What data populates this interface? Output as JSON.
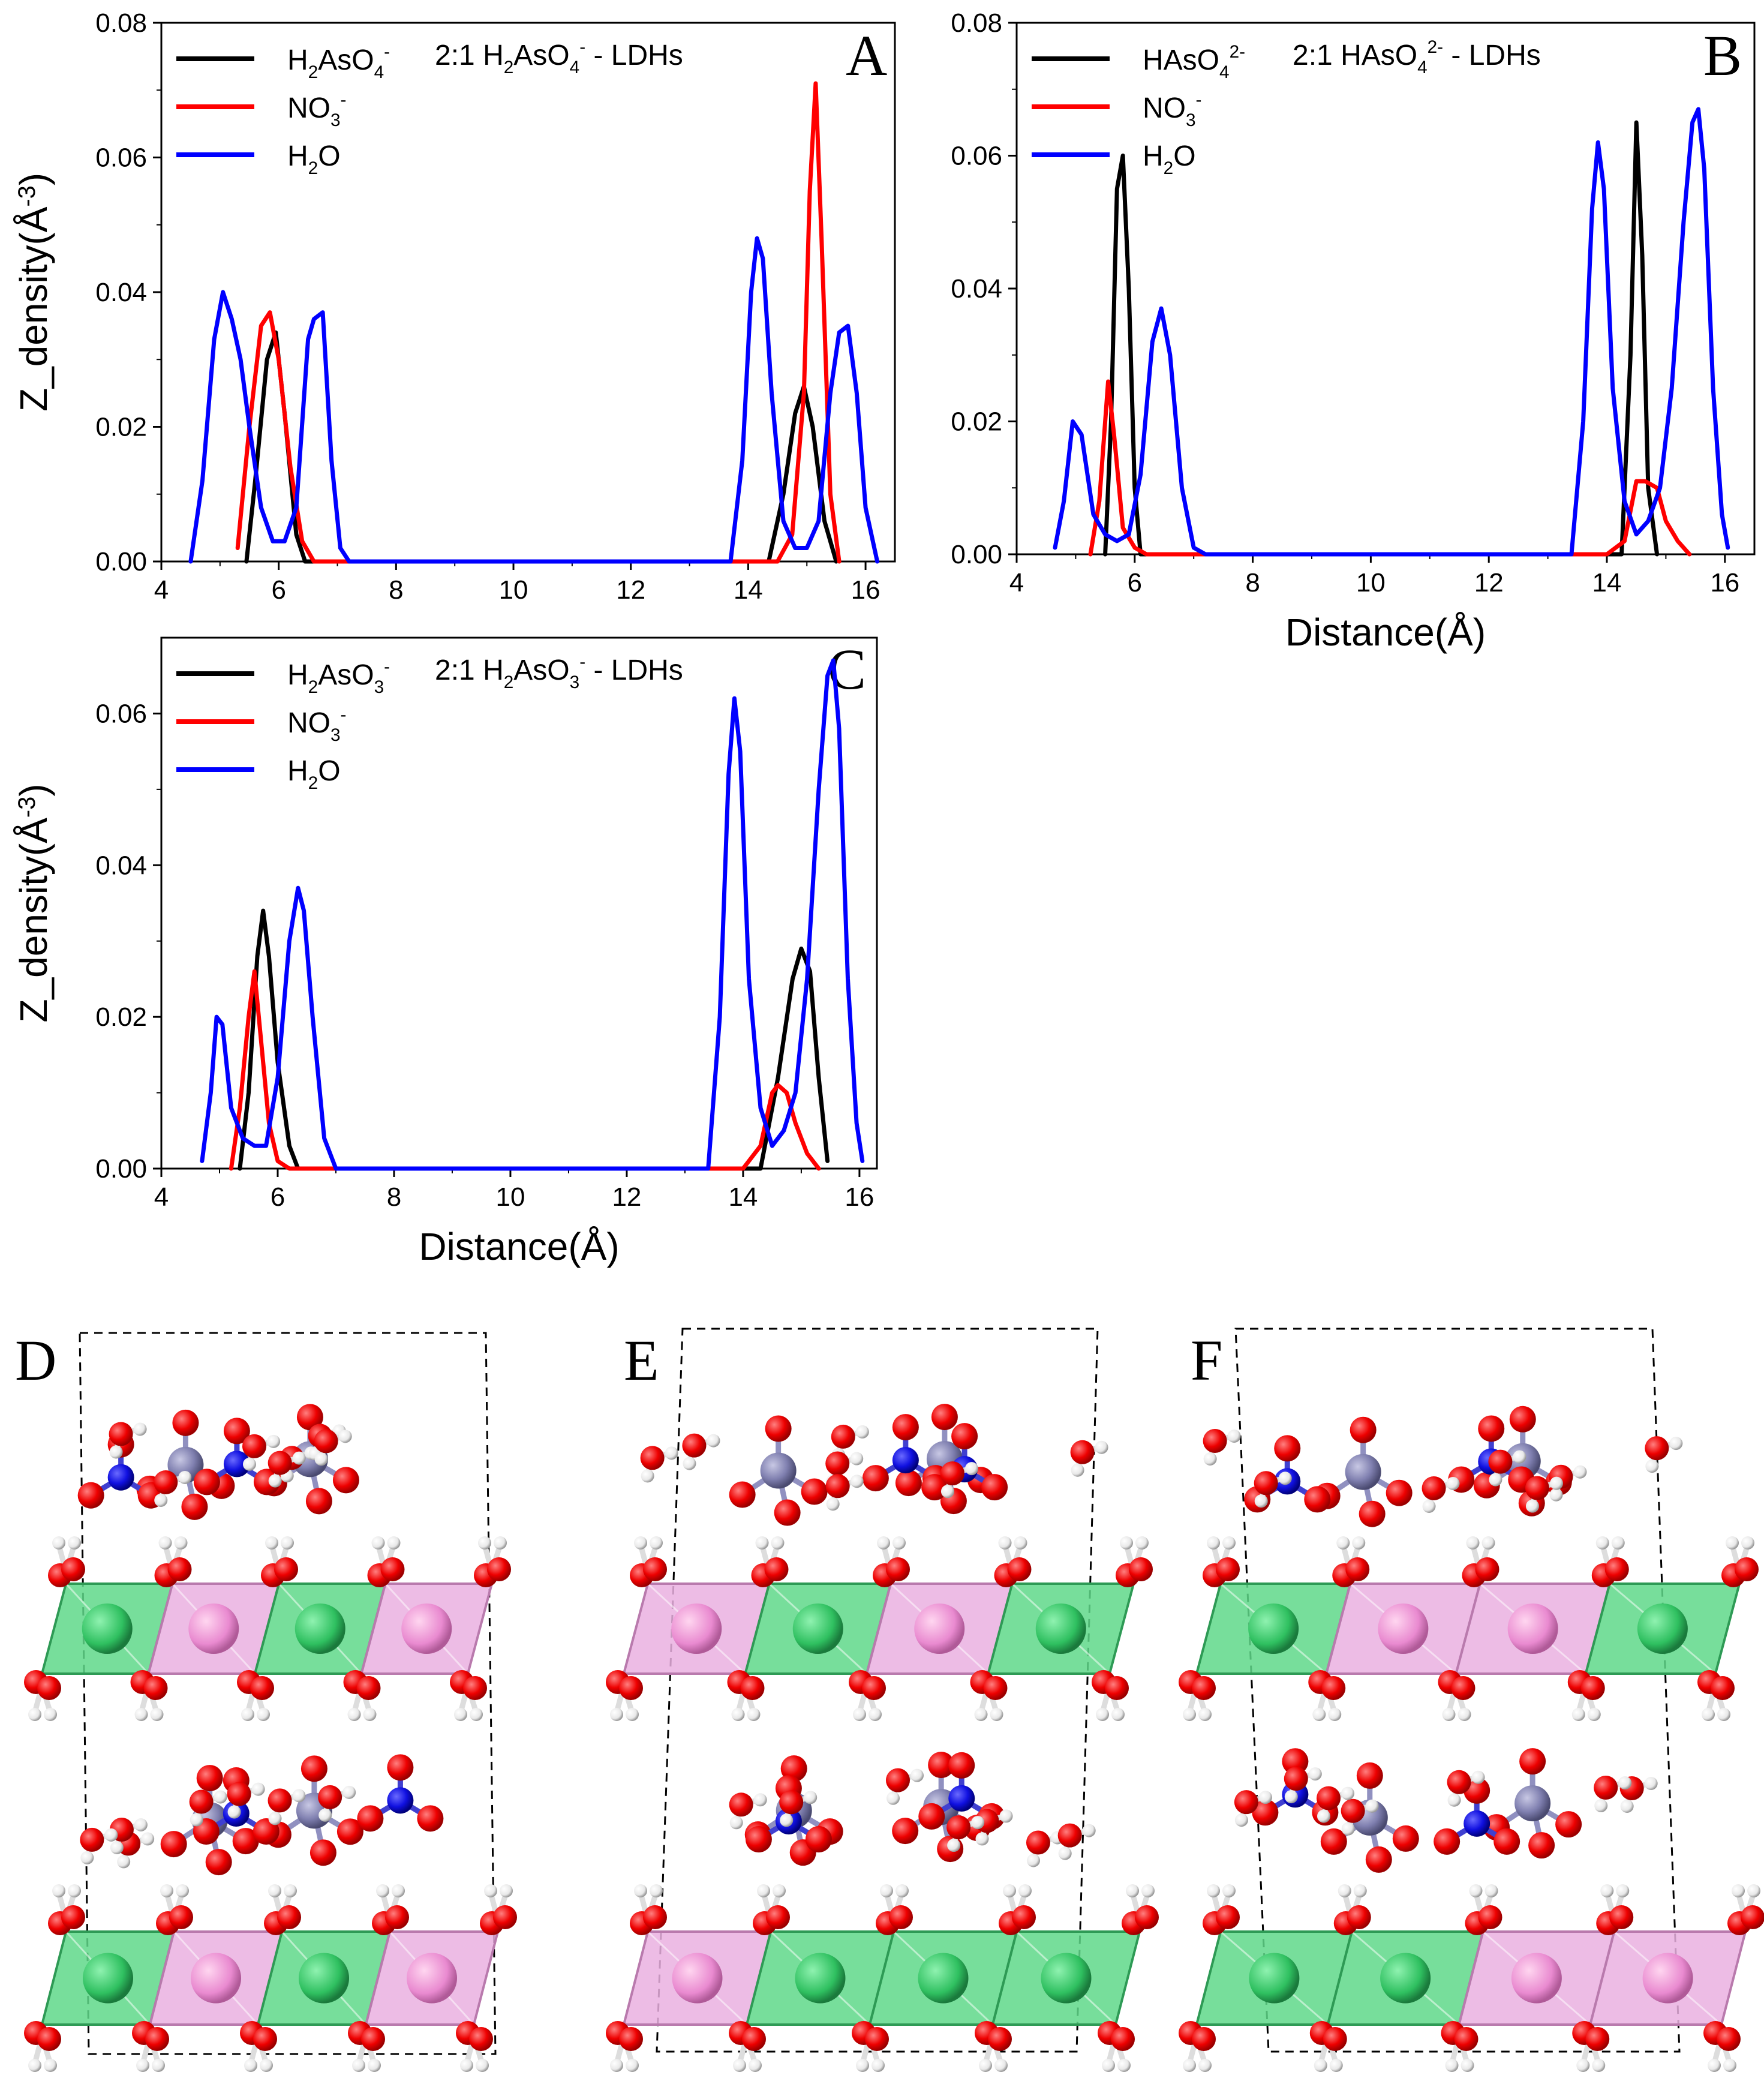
{
  "figure": {
    "panels_md": [
      "D",
      "E",
      "F"
    ]
  },
  "chart_data": [
    {
      "panel": "A",
      "type": "line",
      "title": "2:1 H2AsO4- - LDHs",
      "title_parts": [
        "2:1 H",
        "2",
        "AsO",
        "4",
        "-",
        " - LDHs"
      ],
      "xlabel": "",
      "ylabel": "Z_density(Å-3)",
      "ylabel_parts": [
        "Z_density(Å",
        "-3",
        ")"
      ],
      "xlim": [
        4,
        16.5
      ],
      "ylim": [
        0,
        0.08
      ],
      "xticks": [
        4,
        6,
        8,
        10,
        12,
        14,
        16
      ],
      "yticks": [
        0.0,
        0.02,
        0.04,
        0.06,
        0.08
      ],
      "legend_position": "top-left",
      "series": [
        {
          "name": "H2AsO4-",
          "label_parts": [
            "H",
            "2",
            "AsO",
            "4",
            "-"
          ],
          "color": "#000000",
          "x": [
            5.45,
            5.6,
            5.8,
            5.95,
            6.1,
            6.3,
            6.45,
            14.35,
            14.6,
            14.8,
            14.95,
            15.1,
            15.3,
            15.5
          ],
          "y": [
            0.0,
            0.012,
            0.03,
            0.034,
            0.022,
            0.004,
            0.0,
            0.0,
            0.01,
            0.022,
            0.026,
            0.02,
            0.006,
            0.0
          ]
        },
        {
          "name": "NO3-",
          "label_parts": [
            "NO",
            "3",
            "-"
          ],
          "color": "#ff0000",
          "x": [
            5.3,
            5.5,
            5.7,
            5.85,
            6.0,
            6.2,
            6.4,
            6.6,
            14.5,
            14.75,
            14.95,
            15.05,
            15.15,
            15.25,
            15.4,
            15.55
          ],
          "y": [
            0.002,
            0.02,
            0.035,
            0.037,
            0.03,
            0.014,
            0.003,
            0.0,
            0.0,
            0.004,
            0.025,
            0.055,
            0.071,
            0.048,
            0.01,
            0.0
          ]
        },
        {
          "name": "H2O",
          "label_parts": [
            "H",
            "2",
            "O"
          ],
          "color": "#0000ff",
          "x": [
            4.5,
            4.7,
            4.9,
            5.05,
            5.2,
            5.35,
            5.5,
            5.7,
            5.9,
            6.1,
            6.3,
            6.5,
            6.6,
            6.75,
            6.9,
            7.05,
            7.2,
            13.7,
            13.9,
            14.05,
            14.15,
            14.25,
            14.4,
            14.6,
            14.8,
            15.0,
            15.2,
            15.4,
            15.55,
            15.7,
            15.85,
            16.0,
            16.2
          ],
          "y": [
            0.0,
            0.012,
            0.033,
            0.04,
            0.036,
            0.03,
            0.02,
            0.008,
            0.003,
            0.003,
            0.008,
            0.033,
            0.036,
            0.037,
            0.015,
            0.002,
            0.0,
            0.0,
            0.015,
            0.04,
            0.048,
            0.045,
            0.025,
            0.006,
            0.002,
            0.002,
            0.006,
            0.025,
            0.034,
            0.035,
            0.025,
            0.008,
            0.0
          ]
        }
      ]
    },
    {
      "panel": "B",
      "type": "line",
      "title": "2:1 HAsO42- - LDHs",
      "title_parts": [
        "2:1 HAsO",
        "4",
        "2-",
        " - LDHs"
      ],
      "xlabel": "Distance(Å)",
      "ylabel": "",
      "xlim": [
        4,
        16.5
      ],
      "ylim": [
        0,
        0.08
      ],
      "xticks": [
        4,
        6,
        8,
        10,
        12,
        14,
        16
      ],
      "yticks": [
        0.0,
        0.02,
        0.04,
        0.06,
        0.08
      ],
      "legend_position": "top-left",
      "series": [
        {
          "name": "HAsO42-",
          "label_parts": [
            "HAsO",
            "4",
            "2-"
          ],
          "color": "#000000",
          "x": [
            5.5,
            5.6,
            5.7,
            5.8,
            5.9,
            6.0,
            6.1,
            14.25,
            14.4,
            14.5,
            14.6,
            14.7,
            14.85
          ],
          "y": [
            0.0,
            0.02,
            0.055,
            0.06,
            0.04,
            0.01,
            0.0,
            0.0,
            0.03,
            0.065,
            0.045,
            0.01,
            0.0
          ]
        },
        {
          "name": "NO3-",
          "label_parts": [
            "NO",
            "3",
            "-"
          ],
          "color": "#ff0000",
          "x": [
            5.25,
            5.4,
            5.55,
            5.65,
            5.8,
            6.0,
            6.2,
            14.0,
            14.3,
            14.5,
            14.65,
            14.85,
            15.0,
            15.2,
            15.4
          ],
          "y": [
            0.0,
            0.008,
            0.026,
            0.018,
            0.004,
            0.001,
            0.0,
            0.0,
            0.002,
            0.011,
            0.011,
            0.01,
            0.005,
            0.002,
            0.0
          ]
        },
        {
          "name": "H2O",
          "label_parts": [
            "H",
            "2",
            "O"
          ],
          "color": "#0000ff",
          "x": [
            4.65,
            4.8,
            4.95,
            5.1,
            5.3,
            5.5,
            5.7,
            5.9,
            6.1,
            6.3,
            6.45,
            6.6,
            6.8,
            7.0,
            7.2,
            13.4,
            13.6,
            13.75,
            13.85,
            13.95,
            14.1,
            14.3,
            14.5,
            14.7,
            14.9,
            15.1,
            15.3,
            15.45,
            15.55,
            15.65,
            15.8,
            15.95,
            16.05
          ],
          "y": [
            0.001,
            0.008,
            0.02,
            0.018,
            0.006,
            0.003,
            0.002,
            0.003,
            0.012,
            0.032,
            0.037,
            0.03,
            0.01,
            0.001,
            0.0,
            0.0,
            0.02,
            0.052,
            0.062,
            0.055,
            0.025,
            0.008,
            0.003,
            0.005,
            0.01,
            0.025,
            0.05,
            0.065,
            0.067,
            0.058,
            0.025,
            0.006,
            0.001
          ]
        }
      ]
    },
    {
      "panel": "C",
      "type": "line",
      "title": "2:1 H2AsO3- - LDHs",
      "title_parts": [
        "2:1 H",
        "2",
        "AsO",
        "3",
        "-",
        " - LDHs"
      ],
      "xlabel": "Distance(Å)",
      "ylabel": "Z_density(Å-3)",
      "ylabel_parts": [
        "Z_density(Å",
        "-3",
        ")"
      ],
      "xlim": [
        4,
        16.3
      ],
      "ylim": [
        0,
        0.07
      ],
      "xticks": [
        4,
        6,
        8,
        10,
        12,
        14,
        16
      ],
      "yticks": [
        0.0,
        0.02,
        0.04,
        0.06
      ],
      "legend_position": "top-left",
      "series": [
        {
          "name": "H2AsO3-",
          "label_parts": [
            "H",
            "2",
            "AsO",
            "3",
            "-"
          ],
          "color": "#000000",
          "x": [
            5.35,
            5.5,
            5.65,
            5.75,
            5.85,
            6.0,
            6.2,
            6.35,
            14.3,
            14.6,
            14.85,
            15.0,
            15.15,
            15.3,
            15.45
          ],
          "y": [
            0.0,
            0.01,
            0.028,
            0.034,
            0.028,
            0.014,
            0.003,
            0.0,
            0.0,
            0.012,
            0.025,
            0.029,
            0.026,
            0.012,
            0.001
          ]
        },
        {
          "name": "NO3-",
          "label_parts": [
            "NO",
            "3",
            "-"
          ],
          "color": "#ff0000",
          "x": [
            5.2,
            5.35,
            5.5,
            5.6,
            5.7,
            5.85,
            6.0,
            6.2,
            14.0,
            14.3,
            14.5,
            14.6,
            14.75,
            14.9,
            15.1,
            15.3
          ],
          "y": [
            0.0,
            0.008,
            0.02,
            0.026,
            0.018,
            0.006,
            0.001,
            0.0,
            0.0,
            0.003,
            0.01,
            0.011,
            0.01,
            0.006,
            0.002,
            0.0
          ]
        },
        {
          "name": "H2O",
          "label_parts": [
            "H",
            "2",
            "O"
          ],
          "color": "#0000ff",
          "x": [
            4.7,
            4.85,
            4.95,
            5.05,
            5.2,
            5.4,
            5.6,
            5.8,
            6.0,
            6.2,
            6.35,
            6.45,
            6.6,
            6.8,
            7.0,
            13.4,
            13.6,
            13.75,
            13.85,
            13.95,
            14.1,
            14.3,
            14.5,
            14.7,
            14.9,
            15.1,
            15.3,
            15.45,
            15.55,
            15.65,
            15.8,
            15.95,
            16.05
          ],
          "y": [
            0.001,
            0.01,
            0.02,
            0.019,
            0.008,
            0.004,
            0.003,
            0.003,
            0.012,
            0.03,
            0.037,
            0.034,
            0.02,
            0.004,
            0.0,
            0.0,
            0.02,
            0.052,
            0.062,
            0.055,
            0.025,
            0.008,
            0.003,
            0.005,
            0.01,
            0.025,
            0.05,
            0.065,
            0.067,
            0.058,
            0.025,
            0.006,
            0.001
          ]
        }
      ]
    }
  ]
}
